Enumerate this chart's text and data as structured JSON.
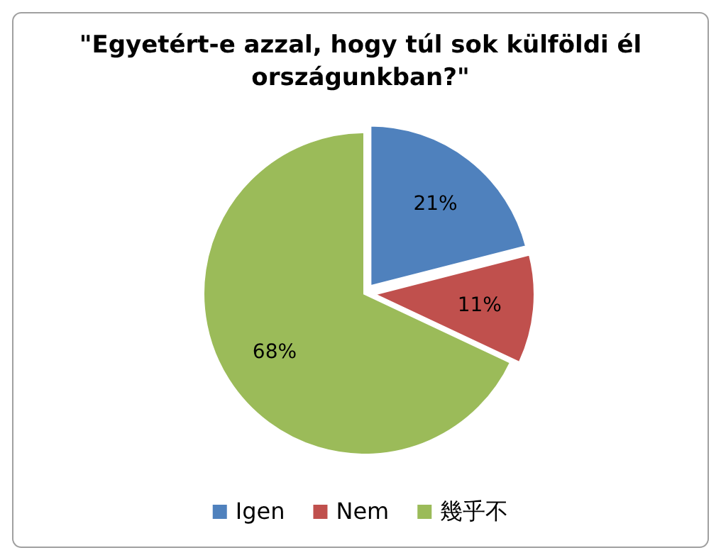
{
  "chart_data": {
    "type": "pie",
    "title": "\"Egyetért-e azzal, hogy túl sok külföldi él országunkban?\"",
    "categories": [
      "Igen",
      "Nem",
      "幾乎不"
    ],
    "values": [
      21,
      11,
      68
    ],
    "colors": [
      "#4f81bd",
      "#c0504d",
      "#9bbb59"
    ],
    "value_labels": [
      "21%",
      "11%",
      "68%"
    ],
    "legend": "bottom"
  }
}
